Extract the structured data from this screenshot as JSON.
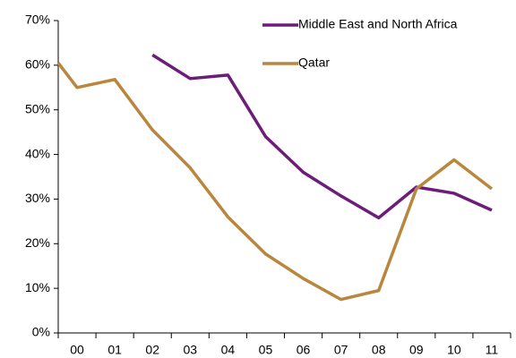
{
  "chart_data": {
    "type": "line",
    "categories": [
      null,
      "00",
      "01",
      "02",
      "03",
      "04",
      "05",
      "06",
      "07",
      "08",
      "09",
      "10",
      "11"
    ],
    "series": [
      {
        "name": "Middle East and North Africa",
        "color": "#6b1d78",
        "values": [
          null,
          null,
          null,
          62.3,
          57,
          57.8,
          44,
          36,
          30.7,
          25.8,
          32.7,
          31.3,
          27.5
        ]
      },
      {
        "name": "Qatar",
        "color": "#b8873d",
        "values": [
          60.5,
          55,
          56.8,
          45.5,
          37,
          26,
          17.7,
          12.2,
          7.5,
          9.5,
          32.3,
          38.8,
          32.3
        ]
      }
    ],
    "ylim": [
      0,
      70
    ],
    "yticks": [
      {
        "value": 0,
        "label": "0%"
      },
      {
        "value": 10,
        "label": "10%"
      },
      {
        "value": 20,
        "label": "20%"
      },
      {
        "value": 30,
        "label": "30%"
      },
      {
        "value": 40,
        "label": "40%"
      },
      {
        "value": 50,
        "label": "50%"
      },
      {
        "value": 60,
        "label": "60%"
      },
      {
        "value": 70,
        "label": "70%"
      }
    ],
    "grid": false,
    "legend": "top-right"
  }
}
